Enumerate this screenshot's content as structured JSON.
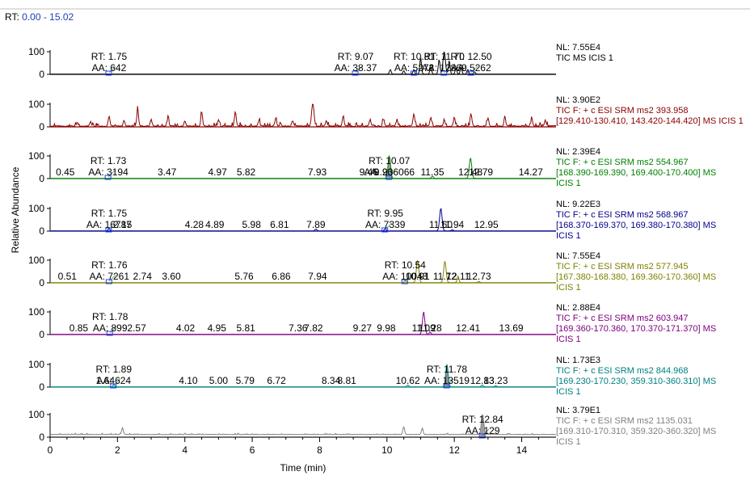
{
  "header": {
    "rt_label": "RT:",
    "rt_range": "0.00 - 15.02"
  },
  "chart_data": {
    "type": "line",
    "title": "",
    "xlabel": "Time (min)",
    "ylabel": "Relative Abundance",
    "xlim": [
      0,
      15.02
    ],
    "ylim": [
      0,
      100
    ],
    "x_ticks": [
      0,
      2,
      4,
      6,
      8,
      10,
      12,
      14
    ],
    "y_ticks": [
      0,
      100
    ],
    "panels": [
      {
        "color": "#000000",
        "nl": "NL: 7.55E4",
        "desc": [
          "TIC  MS  ICIS 1"
        ],
        "peaks": [
          [
            11.7,
            100
          ],
          [
            11.0,
            70
          ],
          [
            11.55,
            65
          ],
          [
            11.85,
            60
          ],
          [
            12.05,
            25
          ],
          [
            12.2,
            30
          ],
          [
            12.4,
            20
          ],
          [
            10.1,
            20
          ],
          [
            10.5,
            15
          ],
          [
            12.6,
            10
          ],
          [
            11.3,
            30
          ],
          [
            10.8,
            20
          ]
        ],
        "baseline": 0,
        "labels": [
          {
            "x": 1.75,
            "lines": [
              "RT: 1.75",
              "AA: 642"
            ]
          },
          {
            "x": 9.07,
            "lines": [
              "RT: 9.07",
              "AA: 38.37"
            ]
          },
          {
            "x": 10.81,
            "lines": [
              "RT: 10.81",
              "AA: 5273"
            ]
          },
          {
            "x": 11.7,
            "lines": [
              "RT: 11.70",
              "AA: 12869"
            ]
          },
          {
            "x": 12.5,
            "lines": [
              "RT: 12.50",
              "AA: 5262"
            ]
          }
        ]
      },
      {
        "color": "#8b0000",
        "nl": "NL: 3.90E2",
        "desc": [
          "TIC F: + c ESI SRM ms2 393.958",
          "[129.410-130.410, 143.420-144.420]  MS  ICIS 1"
        ],
        "peaks": [
          [
            7.8,
            100
          ],
          [
            2.6,
            75
          ],
          [
            5.5,
            65
          ],
          [
            4.5,
            60
          ],
          [
            1.75,
            45
          ],
          [
            10.8,
            55
          ],
          [
            12.5,
            50
          ],
          [
            13.5,
            45
          ],
          [
            3.5,
            40
          ],
          [
            8.7,
            45
          ],
          [
            11.3,
            40
          ],
          [
            14.3,
            35
          ],
          [
            6.7,
            35
          ],
          [
            9.5,
            30
          ],
          [
            12.0,
            40
          ],
          [
            13.0,
            35
          ],
          [
            5.0,
            30
          ],
          [
            3.0,
            30
          ],
          [
            9.9,
            30
          ],
          [
            0.8,
            15
          ],
          [
            1.2,
            20
          ],
          [
            2.2,
            25
          ],
          [
            4.0,
            25
          ],
          [
            6.2,
            25
          ],
          [
            7.2,
            25
          ],
          [
            8.2,
            25
          ],
          [
            10.3,
            25
          ],
          [
            11.7,
            30
          ],
          [
            14.7,
            25
          ]
        ],
        "noise": 0.12,
        "baseline": 0,
        "labels": []
      },
      {
        "color": "#008000",
        "nl": "NL: 2.39E4",
        "desc": [
          "TIC F: + c ESI SRM ms2 554.967",
          "[168.390-169.390, 169.400-170.400]  MS",
          "ICIS 1"
        ],
        "peaks": [
          [
            10.07,
            100
          ],
          [
            12.48,
            90
          ],
          [
            11.35,
            10
          ]
        ],
        "filled": [
          10.07
        ],
        "baseline": 0,
        "labels": [
          {
            "x": 0.45,
            "lines": [
              "0.45"
            ]
          },
          {
            "x": 1.73,
            "lines": [
              "RT: 1.73",
              "AA: 3194"
            ]
          },
          {
            "x": 3.47,
            "lines": [
              "3.47"
            ]
          },
          {
            "x": 4.97,
            "lines": [
              "4.97"
            ]
          },
          {
            "x": 5.82,
            "lines": [
              "5.82"
            ]
          },
          {
            "x": 7.93,
            "lines": [
              "7.93"
            ]
          },
          {
            "x": 9.46,
            "lines": [
              "9.46"
            ]
          },
          {
            "x": 9.9,
            "lines": [
              "9.90"
            ]
          },
          {
            "x": 10.07,
            "lines": [
              "RT: 10.07",
              "AA: 236066"
            ]
          },
          {
            "x": 11.35,
            "lines": [
              "11.35"
            ]
          },
          {
            "x": 12.48,
            "lines": [
              "12.48"
            ]
          },
          {
            "x": 12.79,
            "lines": [
              "12.79"
            ]
          },
          {
            "x": 14.27,
            "lines": [
              "14.27"
            ]
          }
        ]
      },
      {
        "color": "#00008b",
        "nl": "NL: 9.22E3",
        "desc": [
          "TIC F: + c ESI SRM ms2 568.967",
          "[168.370-169.370, 169.380-170.380]  MS",
          "ICIS 1"
        ],
        "peaks": [
          [
            11.6,
            100
          ],
          [
            1.75,
            10
          ],
          [
            9.95,
            10
          ],
          [
            7.89,
            8
          ],
          [
            11.94,
            5
          ]
        ],
        "baseline": 0,
        "labels": [
          {
            "x": 1.75,
            "lines": [
              "RT: 1.75",
              "AA: 16787"
            ]
          },
          {
            "x": 2.15,
            "lines": [
              "2.15"
            ]
          },
          {
            "x": 4.28,
            "lines": [
              "4.28"
            ]
          },
          {
            "x": 4.89,
            "lines": [
              "4.89"
            ]
          },
          {
            "x": 5.98,
            "lines": [
              "5.98"
            ]
          },
          {
            "x": 6.81,
            "lines": [
              "6.81"
            ]
          },
          {
            "x": 7.89,
            "lines": [
              "7.89"
            ]
          },
          {
            "x": 9.95,
            "lines": [
              "RT: 9.95",
              "AA: 7339"
            ]
          },
          {
            "x": 11.6,
            "lines": [
              "11.60"
            ]
          },
          {
            "x": 11.94,
            "lines": [
              "11.94"
            ]
          },
          {
            "x": 12.95,
            "lines": [
              "12.95"
            ]
          }
        ]
      },
      {
        "color": "#808000",
        "nl": "NL: 7.55E4",
        "desc": [
          "TIC F: + c ESI SRM ms2 577.945",
          "[167.380-168.380, 169.360-170.360]  MS",
          "ICIS 1"
        ],
        "peaks": [
          [
            10.91,
            100
          ],
          [
            11.72,
            95
          ],
          [
            12.11,
            30
          ],
          [
            10.54,
            10
          ],
          [
            12.73,
            5
          ]
        ],
        "baseline": 0,
        "labels": [
          {
            "x": 0.51,
            "lines": [
              "0.51"
            ]
          },
          {
            "x": 1.76,
            "lines": [
              "RT: 1.76",
              "AA: 7261"
            ]
          },
          {
            "x": 2.74,
            "lines": [
              "2.74"
            ]
          },
          {
            "x": 3.6,
            "lines": [
              "3.60"
            ]
          },
          {
            "x": 5.76,
            "lines": [
              "5.76"
            ]
          },
          {
            "x": 6.86,
            "lines": [
              "6.86"
            ]
          },
          {
            "x": 7.94,
            "lines": [
              "7.94"
            ]
          },
          {
            "x": 10.54,
            "lines": [
              "RT: 10.54",
              "AA: 10043"
            ]
          },
          {
            "x": 10.91,
            "lines": [
              "10.91"
            ]
          },
          {
            "x": 11.72,
            "lines": [
              "11.72"
            ]
          },
          {
            "x": 12.11,
            "lines": [
              "12.11"
            ]
          },
          {
            "x": 12.73,
            "lines": [
              "12.73"
            ]
          }
        ]
      },
      {
        "color": "#800080",
        "nl": "NL: 2.88E4",
        "desc": [
          "TIC F: + c ESI SRM ms2 603.947",
          "[169.360-170.360, 170.370-171.370]  MS",
          "ICIS 1"
        ],
        "peaks": [
          [
            11.09,
            100
          ],
          [
            11.28,
            10
          ]
        ],
        "baseline": 0,
        "labels": [
          {
            "x": 0.85,
            "lines": [
              "0.85"
            ]
          },
          {
            "x": 1.78,
            "lines": [
              "RT: 1.78",
              "AA: 899"
            ]
          },
          {
            "x": 2.57,
            "lines": [
              "2.57"
            ]
          },
          {
            "x": 4.02,
            "lines": [
              "4.02"
            ]
          },
          {
            "x": 4.95,
            "lines": [
              "4.95"
            ]
          },
          {
            "x": 5.81,
            "lines": [
              "5.81"
            ]
          },
          {
            "x": 7.36,
            "lines": [
              "7.36"
            ]
          },
          {
            "x": 7.82,
            "lines": [
              "7.82"
            ]
          },
          {
            "x": 9.27,
            "lines": [
              "9.27"
            ]
          },
          {
            "x": 9.98,
            "lines": [
              "9.98"
            ]
          },
          {
            "x": 11.09,
            "lines": [
              "11.09"
            ]
          },
          {
            "x": 11.28,
            "lines": [
              "11.28"
            ]
          },
          {
            "x": 12.41,
            "lines": [
              "12.41"
            ]
          },
          {
            "x": 13.69,
            "lines": [
              "13.69"
            ]
          }
        ]
      },
      {
        "color": "#008080",
        "nl": "NL: 1.73E3",
        "desc": [
          "TIC F: + c ESI SRM ms2 844.968",
          "[169.230-170.230, 359.310-360.310]  MS",
          "ICIS 1"
        ],
        "peaks": [
          [
            11.78,
            100
          ],
          [
            1.89,
            10
          ],
          [
            10.62,
            8
          ],
          [
            12.83,
            8
          ],
          [
            13.23,
            5
          ]
        ],
        "filled": [
          11.78
        ],
        "baseline": 0,
        "labels": [
          {
            "x": 1.64,
            "lines": [
              "1.64"
            ]
          },
          {
            "x": 1.89,
            "lines": [
              "RT: 1.89",
              "AA: 624"
            ]
          },
          {
            "x": 4.1,
            "lines": [
              "4.10"
            ]
          },
          {
            "x": 5.0,
            "lines": [
              "5.00"
            ]
          },
          {
            "x": 5.79,
            "lines": [
              "5.79"
            ]
          },
          {
            "x": 6.72,
            "lines": [
              "6.72"
            ]
          },
          {
            "x": 8.34,
            "lines": [
              "8.34"
            ]
          },
          {
            "x": 8.81,
            "lines": [
              "8.81"
            ]
          },
          {
            "x": 10.62,
            "lines": [
              "10.62"
            ]
          },
          {
            "x": 11.78,
            "lines": [
              "RT: 11.78",
              "AA: 13519"
            ]
          },
          {
            "x": 12.83,
            "lines": [
              "12.83"
            ]
          },
          {
            "x": 13.23,
            "lines": [
              "13.23"
            ]
          }
        ]
      },
      {
        "color": "#808080",
        "nl": "NL: 3.79E1",
        "desc": [
          "TIC F: + c ESI SRM ms2 1135.031",
          "[169.310-170.310, 359.320-360.320]  MS",
          "ICIS 1"
        ],
        "peaks": [
          [
            12.84,
            90
          ],
          [
            2.15,
            30
          ],
          [
            10.5,
            35
          ],
          [
            11.05,
            28
          ]
        ],
        "filled": [
          12.84
        ],
        "noise": 0.04,
        "baseline": 10,
        "labels": [
          {
            "x": 12.84,
            "lines": [
              "RT: 12.84",
              "AA: 129"
            ]
          }
        ]
      }
    ]
  }
}
